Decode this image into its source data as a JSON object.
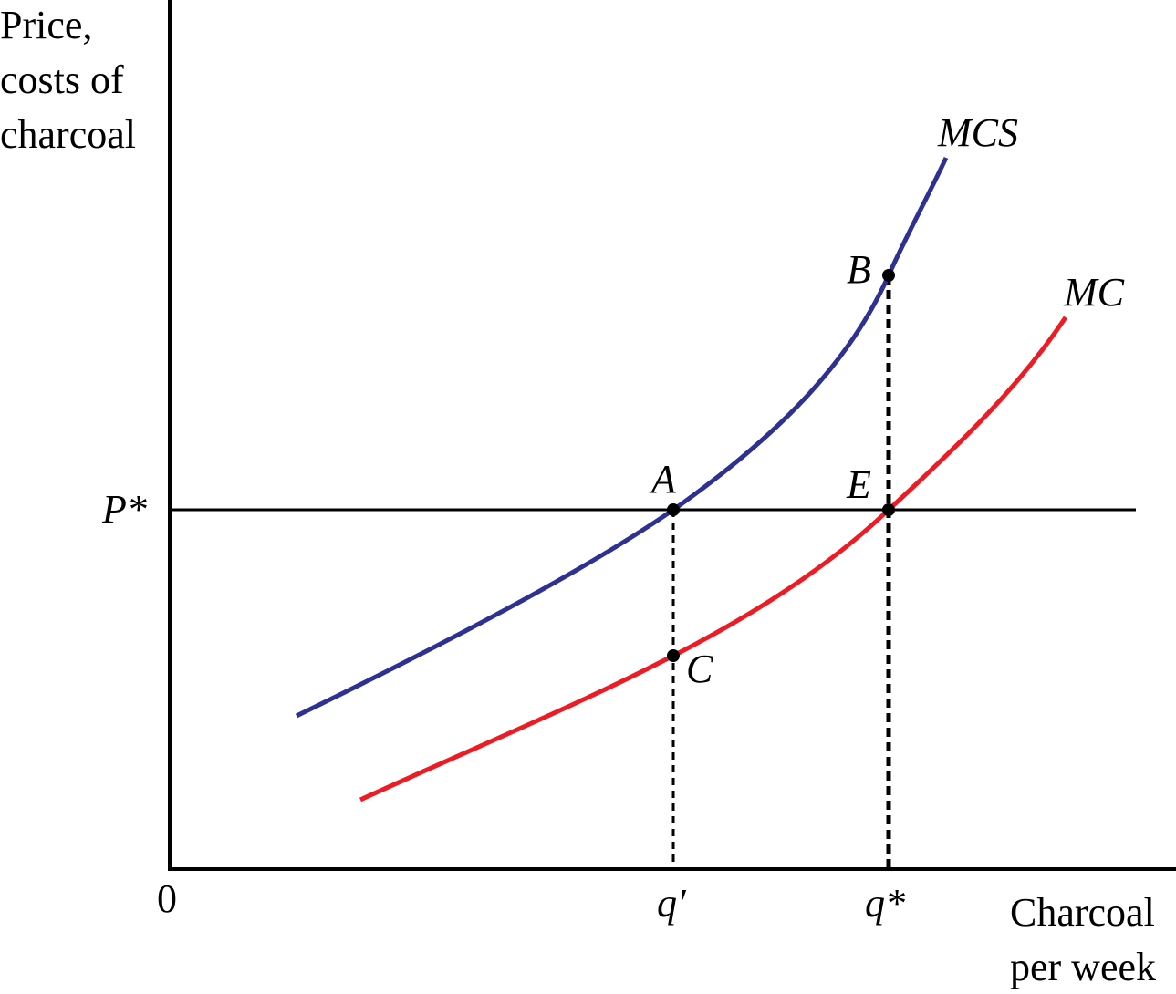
{
  "colors": {
    "mcs": "#2E3192",
    "mc": "#ED1C24",
    "axes": "#000000"
  },
  "y_axis_label": [
    "Price,",
    "costs of",
    "charcoal"
  ],
  "x_axis_label": [
    "Charcoal",
    "per week"
  ],
  "origin_label": "0",
  "price_label": "P*",
  "quantity_labels": {
    "q_prime": "q′",
    "q_star": "q*"
  },
  "curves": {
    "mcs": "MCS",
    "mc": "MC"
  },
  "points": {
    "A": "A",
    "B": "B",
    "C": "C",
    "E": "E"
  }
}
